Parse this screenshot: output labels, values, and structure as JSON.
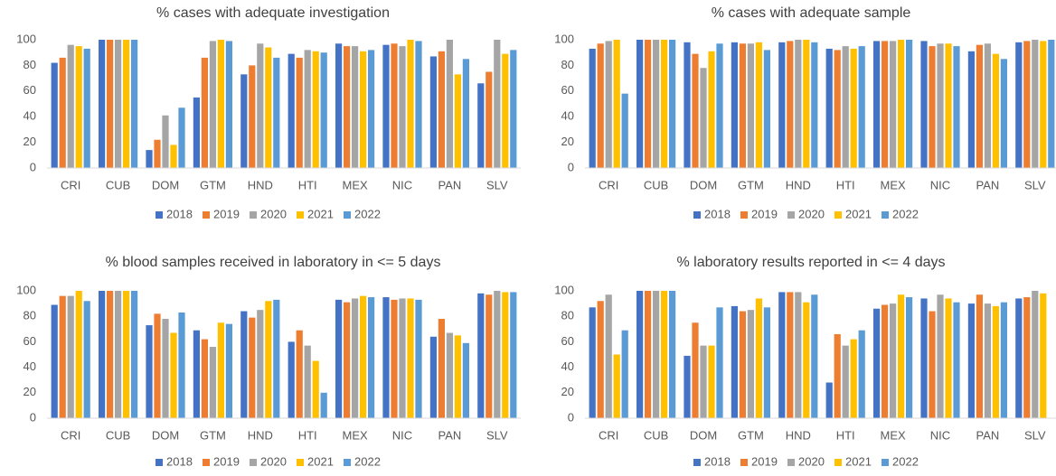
{
  "chart_data": [
    {
      "type": "bar",
      "title": "% cases with adequate investigation",
      "categories": [
        "CRI",
        "CUB",
        "DOM",
        "GTM",
        "HND",
        "HTI",
        "MEX",
        "NIC",
        "PAN",
        "SLV"
      ],
      "series": [
        {
          "name": "2018",
          "color": "#4472c4",
          "values": [
            82,
            100,
            14,
            55,
            73,
            89,
            97,
            96,
            87,
            66
          ]
        },
        {
          "name": "2019",
          "color": "#ed7d31",
          "values": [
            86,
            100,
            22,
            86,
            80,
            86,
            95,
            97,
            91,
            75
          ]
        },
        {
          "name": "2020",
          "color": "#a5a5a5",
          "values": [
            96,
            100,
            41,
            99,
            97,
            92,
            95,
            95,
            100,
            100
          ]
        },
        {
          "name": "2021",
          "color": "#ffc000",
          "values": [
            95,
            100,
            18,
            100,
            94,
            91,
            91,
            100,
            73,
            89
          ]
        },
        {
          "name": "2022",
          "color": "#5b9bd5",
          "values": [
            93,
            100,
            47,
            99,
            86,
            90,
            92,
            99,
            85,
            92
          ]
        }
      ],
      "ylim": [
        0,
        100
      ],
      "yticks": [
        0,
        20,
        40,
        60,
        80,
        100
      ],
      "grid": false,
      "legend": "bottom"
    },
    {
      "type": "bar",
      "title": "% cases with adequate sample",
      "categories": [
        "CRI",
        "CUB",
        "DOM",
        "GTM",
        "HND",
        "HTI",
        "MEX",
        "NIC",
        "PAN",
        "SLV"
      ],
      "series": [
        {
          "name": "2018",
          "color": "#4472c4",
          "values": [
            93,
            100,
            98,
            98,
            98,
            93,
            99,
            99,
            91,
            98
          ]
        },
        {
          "name": "2019",
          "color": "#ed7d31",
          "values": [
            97,
            100,
            89,
            97,
            99,
            92,
            99,
            95,
            96,
            99
          ]
        },
        {
          "name": "2020",
          "color": "#a5a5a5",
          "values": [
            99,
            100,
            78,
            97,
            100,
            95,
            99,
            97,
            97,
            100
          ]
        },
        {
          "name": "2021",
          "color": "#ffc000",
          "values": [
            100,
            100,
            91,
            98,
            100,
            93,
            100,
            97,
            89,
            99
          ]
        },
        {
          "name": "2022",
          "color": "#5b9bd5",
          "values": [
            58,
            100,
            97,
            92,
            98,
            95,
            100,
            95,
            85,
            100
          ]
        }
      ],
      "ylim": [
        0,
        100
      ],
      "yticks": [
        0,
        20,
        40,
        60,
        80,
        100
      ],
      "grid": false,
      "legend": "bottom"
    },
    {
      "type": "bar",
      "title": "% blood samples received in laboratory in <= 5 days",
      "categories": [
        "CRI",
        "CUB",
        "DOM",
        "GTM",
        "HND",
        "HTI",
        "MEX",
        "NIC",
        "PAN",
        "SLV"
      ],
      "series": [
        {
          "name": "2018",
          "color": "#4472c4",
          "values": [
            89,
            100,
            73,
            69,
            84,
            60,
            93,
            95,
            64,
            98
          ]
        },
        {
          "name": "2019",
          "color": "#ed7d31",
          "values": [
            96,
            100,
            82,
            62,
            79,
            69,
            91,
            93,
            78,
            97
          ]
        },
        {
          "name": "2020",
          "color": "#a5a5a5",
          "values": [
            96,
            100,
            78,
            56,
            85,
            57,
            94,
            94,
            67,
            100
          ]
        },
        {
          "name": "2021",
          "color": "#ffc000",
          "values": [
            100,
            100,
            67,
            75,
            92,
            45,
            96,
            94,
            65,
            99
          ]
        },
        {
          "name": "2022",
          "color": "#5b9bd5",
          "values": [
            92,
            100,
            83,
            74,
            93,
            20,
            95,
            93,
            59,
            99
          ]
        }
      ],
      "ylim": [
        0,
        100
      ],
      "yticks": [
        0,
        20,
        40,
        60,
        80,
        100
      ],
      "grid": false,
      "legend": "bottom"
    },
    {
      "type": "bar",
      "title": "% laboratory results reported in <= 4 days",
      "categories": [
        "CRI",
        "CUB",
        "DOM",
        "GTM",
        "HND",
        "HTI",
        "MEX",
        "NIC",
        "PAN",
        "SLV"
      ],
      "series": [
        {
          "name": "2018",
          "color": "#4472c4",
          "values": [
            87,
            100,
            49,
            88,
            99,
            28,
            86,
            94,
            90,
            94
          ]
        },
        {
          "name": "2019",
          "color": "#ed7d31",
          "values": [
            92,
            100,
            75,
            84,
            99,
            66,
            89,
            84,
            97,
            95
          ]
        },
        {
          "name": "2020",
          "color": "#a5a5a5",
          "values": [
            97,
            100,
            57,
            85,
            99,
            57,
            90,
            97,
            90,
            100
          ]
        },
        {
          "name": "2021",
          "color": "#ffc000",
          "values": [
            50,
            100,
            57,
            94,
            91,
            62,
            97,
            94,
            88,
            98
          ]
        },
        {
          "name": "2022",
          "color": "#5b9bd5",
          "values": [
            69,
            100,
            87,
            87,
            97,
            69,
            95,
            91,
            91,
            null
          ]
        }
      ],
      "ylim": [
        0,
        100
      ],
      "yticks": [
        0,
        20,
        40,
        60,
        80,
        100
      ],
      "grid": false,
      "legend": "bottom"
    }
  ]
}
